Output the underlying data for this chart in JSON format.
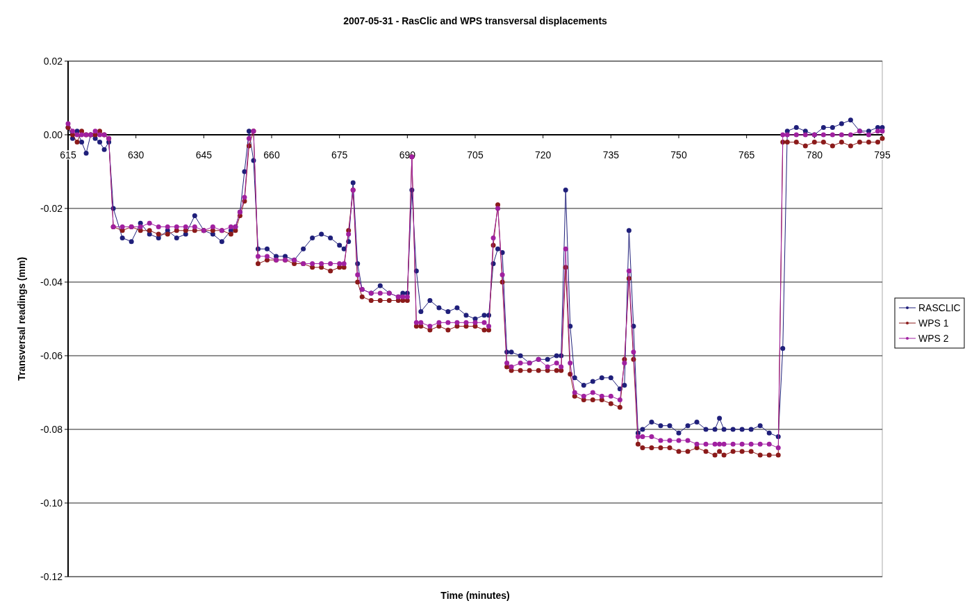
{
  "chart_data": {
    "type": "line",
    "title": "2007-05-31 - RasClic and WPS transversal displacements",
    "xlabel": "Time (minutes)",
    "ylabel": "Transversal readings (mm)",
    "x": [
      615,
      616,
      617,
      618,
      619,
      620,
      621,
      622,
      623,
      624,
      625,
      627,
      629,
      631,
      633,
      635,
      637,
      639,
      641,
      643,
      645,
      647,
      649,
      651,
      652,
      653,
      654,
      655,
      656,
      657,
      659,
      661,
      663,
      665,
      667,
      669,
      671,
      673,
      675,
      676,
      677,
      678,
      679,
      680,
      682,
      684,
      686,
      688,
      689,
      690,
      691,
      692,
      693,
      695,
      697,
      699,
      701,
      703,
      705,
      707,
      708,
      709,
      710,
      711,
      712,
      713,
      715,
      717,
      719,
      721,
      723,
      724,
      725,
      726,
      727,
      729,
      731,
      733,
      735,
      737,
      738,
      739,
      740,
      741,
      742,
      744,
      746,
      748,
      750,
      752,
      754,
      756,
      758,
      759,
      760,
      762,
      764,
      766,
      768,
      770,
      772,
      773,
      774,
      776,
      778,
      780,
      782,
      784,
      786,
      788,
      790,
      792,
      794,
      795
    ],
    "series": [
      {
        "name": "RASCLIC",
        "color": "#1f1f7a",
        "values": [
          0.002,
          -0.001,
          0.001,
          -0.002,
          -0.005,
          0.0,
          -0.001,
          -0.002,
          -0.004,
          -0.002,
          -0.02,
          -0.028,
          -0.029,
          -0.024,
          -0.027,
          -0.028,
          -0.026,
          -0.028,
          -0.027,
          -0.022,
          -0.026,
          -0.027,
          -0.029,
          -0.026,
          -0.025,
          -0.021,
          -0.01,
          0.001,
          -0.007,
          -0.031,
          -0.031,
          -0.033,
          -0.033,
          -0.034,
          -0.031,
          -0.028,
          -0.027,
          -0.028,
          -0.03,
          -0.031,
          -0.029,
          -0.013,
          -0.035,
          -0.042,
          -0.043,
          -0.041,
          -0.043,
          -0.044,
          -0.043,
          -0.043,
          -0.015,
          -0.037,
          -0.048,
          -0.045,
          -0.047,
          -0.048,
          -0.047,
          -0.049,
          -0.05,
          -0.049,
          -0.049,
          -0.035,
          -0.031,
          -0.032,
          -0.059,
          -0.059,
          -0.06,
          -0.062,
          -0.061,
          -0.061,
          -0.06,
          -0.06,
          -0.015,
          -0.052,
          -0.066,
          -0.068,
          -0.067,
          -0.066,
          -0.066,
          -0.069,
          -0.068,
          -0.026,
          -0.052,
          -0.081,
          -0.08,
          -0.078,
          -0.079,
          -0.079,
          -0.081,
          -0.079,
          -0.078,
          -0.08,
          -0.08,
          -0.077,
          -0.08,
          -0.08,
          -0.08,
          -0.08,
          -0.079,
          -0.081,
          -0.082,
          -0.058,
          0.001,
          0.002,
          0.001,
          0.0,
          0.002,
          0.002,
          0.003,
          0.004,
          0.001,
          0.001,
          0.002,
          0.002
        ]
      },
      {
        "name": "WPS 1",
        "color": "#8b1a1a",
        "values": [
          0.002,
          0.0,
          -0.002,
          0.001,
          0.0,
          0.0,
          0.0,
          0.001,
          0.0,
          -0.001,
          -0.025,
          -0.026,
          -0.025,
          -0.026,
          -0.026,
          -0.027,
          -0.027,
          -0.026,
          -0.026,
          -0.026,
          -0.026,
          -0.026,
          -0.026,
          -0.027,
          -0.026,
          -0.022,
          -0.018,
          -0.003,
          0.001,
          -0.035,
          -0.034,
          -0.034,
          -0.034,
          -0.035,
          -0.035,
          -0.036,
          -0.036,
          -0.037,
          -0.036,
          -0.036,
          -0.026,
          -0.015,
          -0.04,
          -0.044,
          -0.045,
          -0.045,
          -0.045,
          -0.045,
          -0.045,
          -0.045,
          -0.006,
          -0.052,
          -0.052,
          -0.053,
          -0.052,
          -0.053,
          -0.052,
          -0.052,
          -0.052,
          -0.053,
          -0.053,
          -0.03,
          -0.019,
          -0.04,
          -0.063,
          -0.064,
          -0.064,
          -0.064,
          -0.064,
          -0.064,
          -0.064,
          -0.064,
          -0.036,
          -0.065,
          -0.071,
          -0.072,
          -0.072,
          -0.072,
          -0.073,
          -0.074,
          -0.061,
          -0.039,
          -0.061,
          -0.084,
          -0.085,
          -0.085,
          -0.085,
          -0.085,
          -0.086,
          -0.086,
          -0.085,
          -0.086,
          -0.087,
          -0.086,
          -0.087,
          -0.086,
          -0.086,
          -0.086,
          -0.087,
          -0.087,
          -0.087,
          -0.002,
          -0.002,
          -0.002,
          -0.003,
          -0.002,
          -0.002,
          -0.003,
          -0.002,
          -0.003,
          -0.002,
          -0.002,
          -0.002,
          -0.001
        ]
      },
      {
        "name": "WPS 2",
        "color": "#a020a0",
        "values": [
          0.003,
          0.001,
          0.0,
          0.0,
          0.0,
          0.0,
          0.001,
          0.0,
          0.0,
          -0.001,
          -0.025,
          -0.025,
          -0.025,
          -0.025,
          -0.024,
          -0.025,
          -0.025,
          -0.025,
          -0.025,
          -0.025,
          -0.026,
          -0.025,
          -0.026,
          -0.025,
          -0.025,
          -0.021,
          -0.017,
          -0.001,
          0.001,
          -0.033,
          -0.033,
          -0.034,
          -0.034,
          -0.034,
          -0.035,
          -0.035,
          -0.035,
          -0.035,
          -0.035,
          -0.035,
          -0.027,
          -0.015,
          -0.038,
          -0.042,
          -0.043,
          -0.043,
          -0.043,
          -0.044,
          -0.044,
          -0.044,
          -0.006,
          -0.051,
          -0.051,
          -0.052,
          -0.051,
          -0.051,
          -0.051,
          -0.051,
          -0.051,
          -0.051,
          -0.052,
          -0.028,
          -0.02,
          -0.038,
          -0.062,
          -0.063,
          -0.062,
          -0.062,
          -0.061,
          -0.063,
          -0.062,
          -0.063,
          -0.031,
          -0.062,
          -0.07,
          -0.071,
          -0.07,
          -0.071,
          -0.071,
          -0.072,
          -0.062,
          -0.037,
          -0.059,
          -0.082,
          -0.082,
          -0.082,
          -0.083,
          -0.083,
          -0.083,
          -0.083,
          -0.084,
          -0.084,
          -0.084,
          -0.084,
          -0.084,
          -0.084,
          -0.084,
          -0.084,
          -0.084,
          -0.084,
          -0.085,
          0.0,
          0.0,
          0.0,
          0.0,
          0.0,
          0.0,
          0.0,
          0.0,
          0.0,
          0.001,
          0.0,
          0.001,
          0.001
        ]
      }
    ],
    "xlim": [
      615,
      795
    ],
    "xticks": [
      615,
      630,
      645,
      660,
      675,
      690,
      705,
      720,
      735,
      750,
      765,
      780,
      795
    ],
    "ylim": [
      -0.12,
      0.02
    ],
    "yticks": [
      {
        "value": 0.02,
        "label": "0.02"
      },
      {
        "value": 0,
        "label": "0.00"
      },
      {
        "value": -0.02,
        "label": "-0.02"
      },
      {
        "value": -0.04,
        "label": "-0.04"
      },
      {
        "value": -0.06,
        "label": "-0.06"
      },
      {
        "value": -0.08,
        "label": "-0.08"
      },
      {
        "value": -0.1,
        "label": "-0.10"
      },
      {
        "value": -0.12,
        "label": "-0.12"
      }
    ],
    "grid": "y",
    "legend": "right",
    "marker": "circle",
    "line_style": "solid"
  }
}
